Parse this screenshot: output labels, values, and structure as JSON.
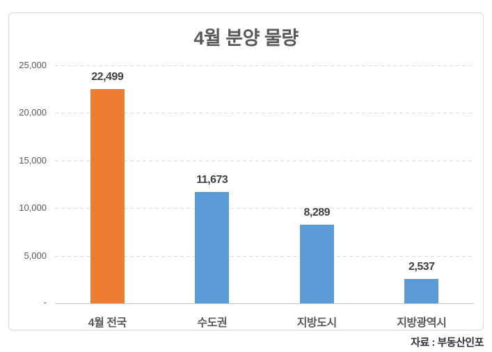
{
  "chart_data": {
    "type": "bar",
    "title": "4월 분양 물량",
    "categories": [
      "4월 전국",
      "수도권",
      "지방도시",
      "지방광역시"
    ],
    "values": [
      22499,
      11673,
      8289,
      2537
    ],
    "value_labels": [
      "22,499",
      "11,673",
      "8,289",
      "2,537"
    ],
    "bar_colors": [
      "#ED7D31",
      "#5B9BD5",
      "#5B9BD5",
      "#5B9BD5"
    ],
    "xlabel": "",
    "ylabel": "",
    "ylim": [
      0,
      25000
    ],
    "y_ticks": [
      {
        "value": 25000,
        "label": "25,000"
      },
      {
        "value": 20000,
        "label": "20,000"
      },
      {
        "value": 15000,
        "label": "15,000"
      },
      {
        "value": 10000,
        "label": "10,000"
      },
      {
        "value": 5000,
        "label": "5,000"
      }
    ],
    "zero_tick_label": "-",
    "grid": "horizontal dashed",
    "legend": "none",
    "source": "자료 : 부동산인포",
    "colors": {
      "highlight_bar": "#ED7D31",
      "default_bar": "#5B9BD5",
      "gridline": "#D9D9D9",
      "axis_text": "#595959",
      "value_text": "#3F3F3F",
      "title_text": "#595959",
      "source_text": "#30303A",
      "frame_border": "#D9D9D9",
      "background": "#FFFFFF"
    }
  }
}
